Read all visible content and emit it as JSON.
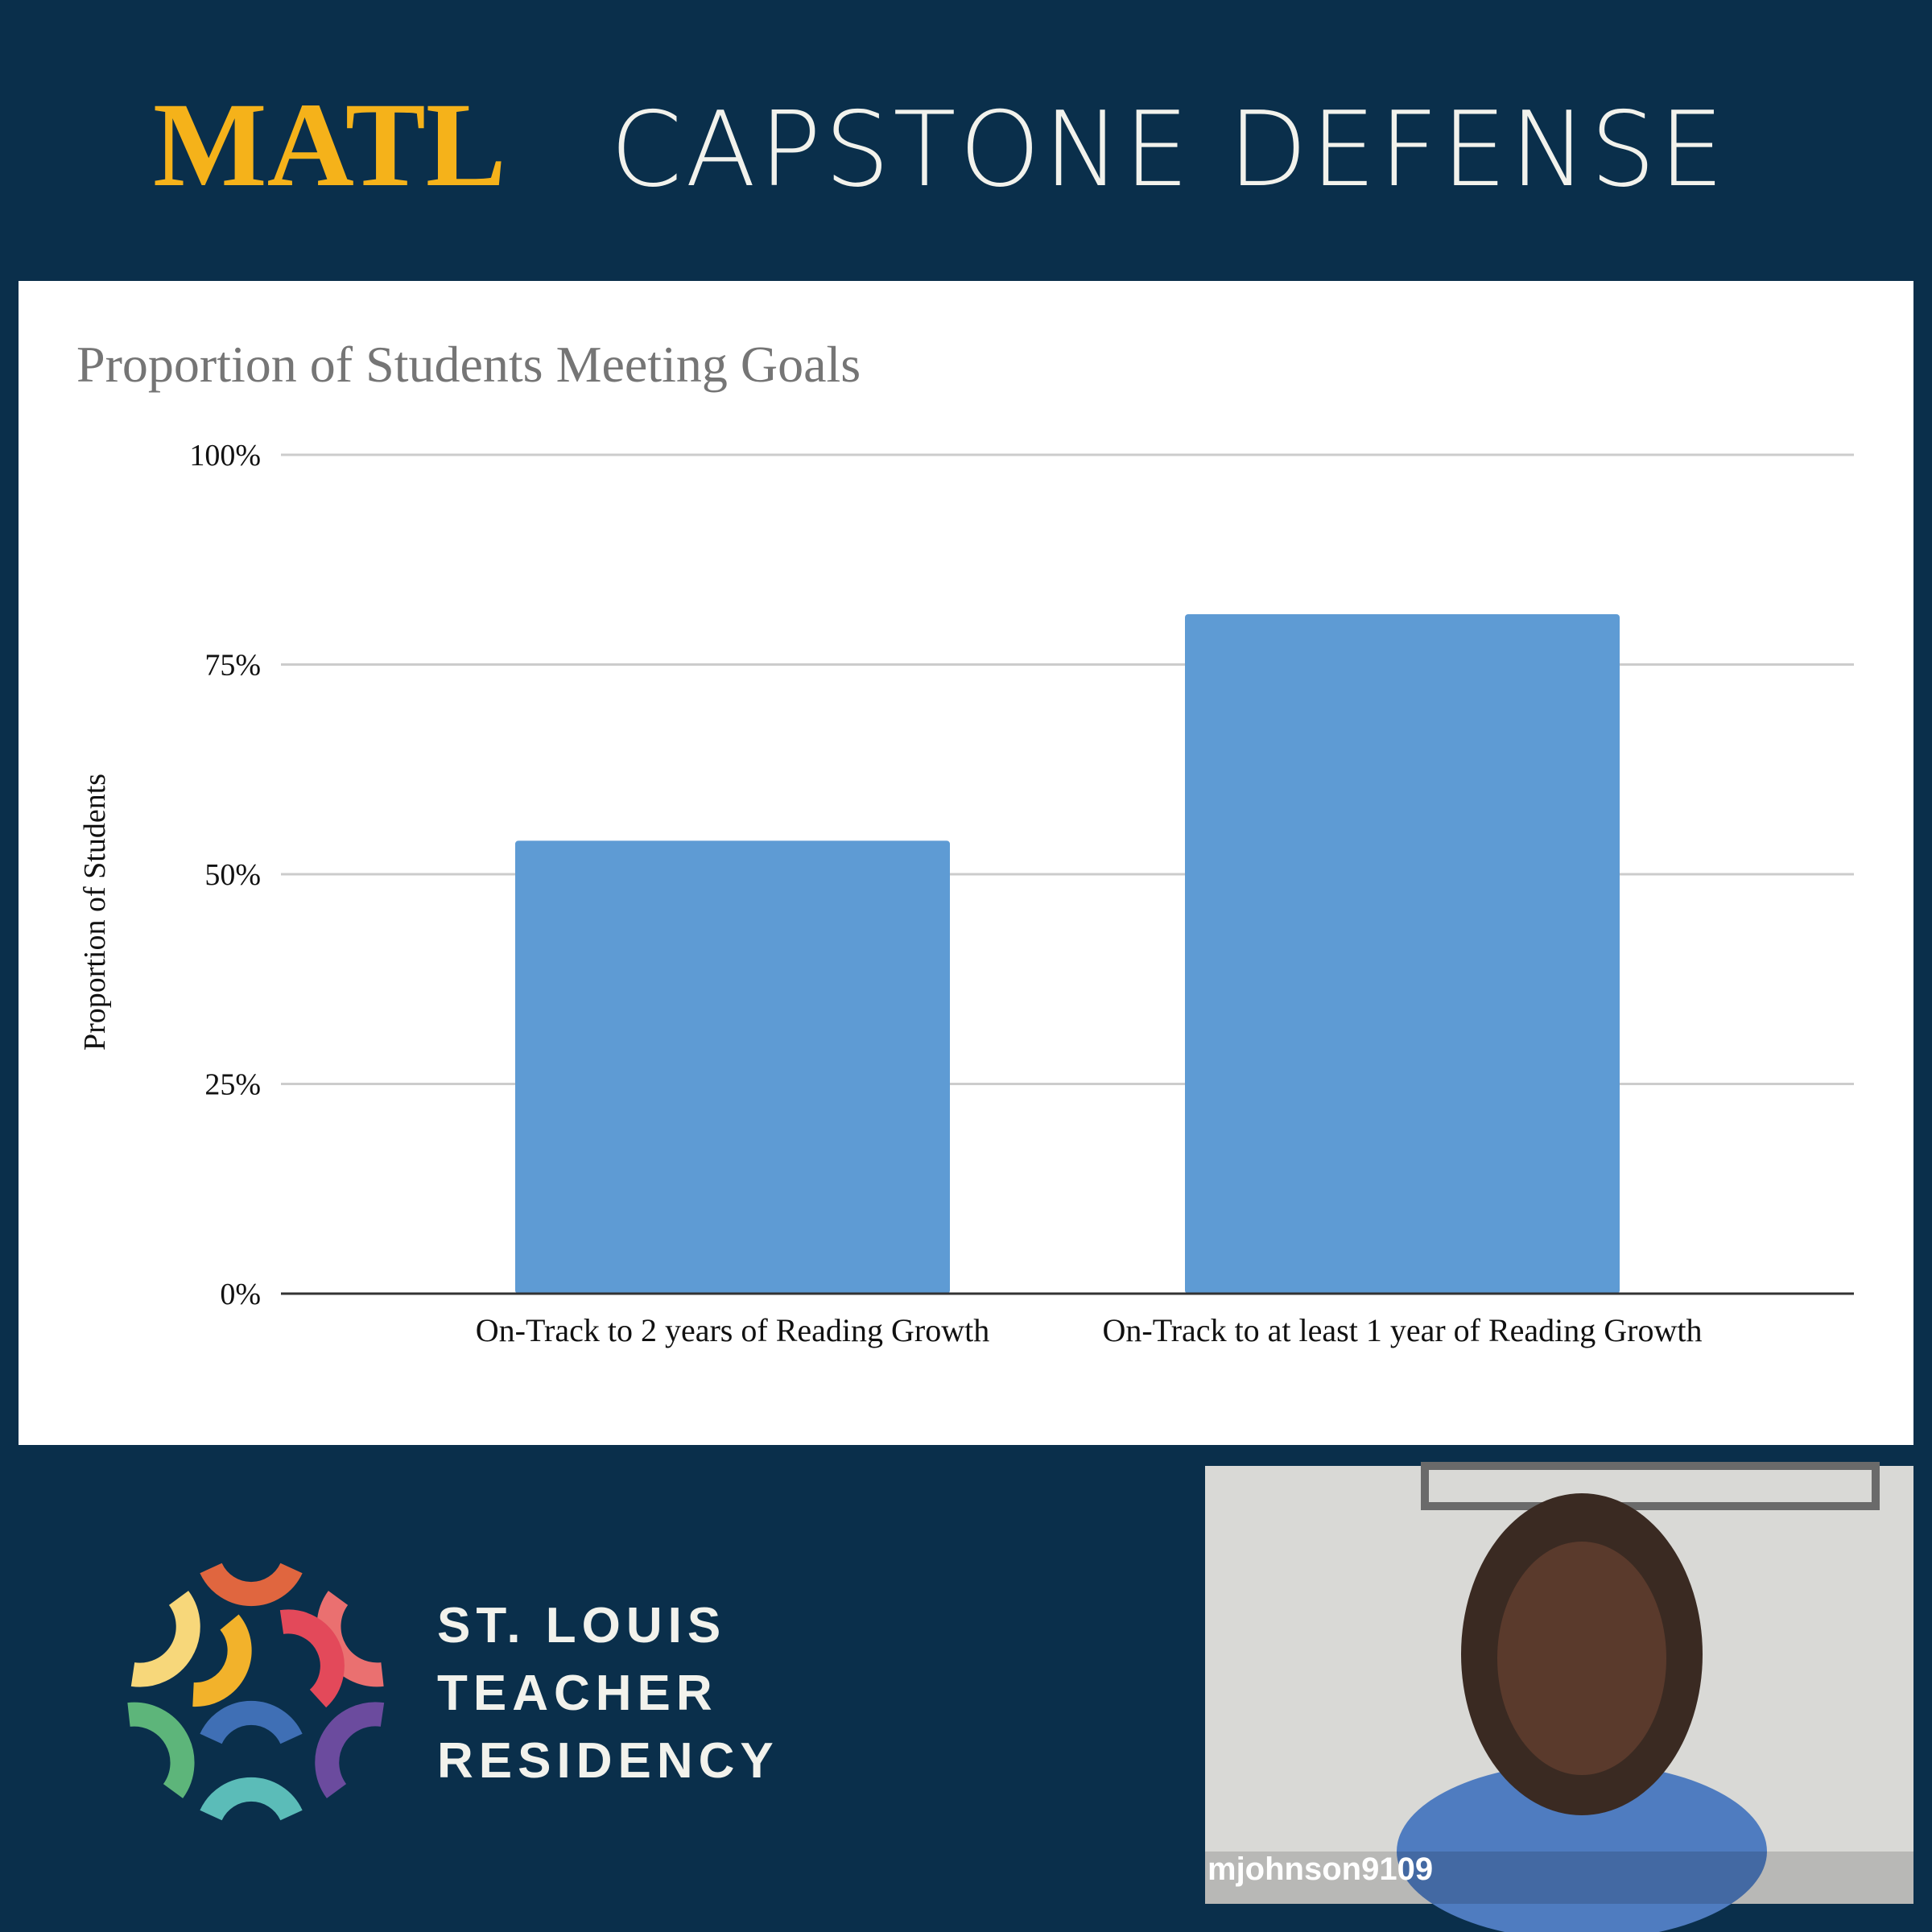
{
  "header": {
    "accent": "MATL",
    "title": "CAPSTONE DEFENSE"
  },
  "chart_data": {
    "type": "bar",
    "title": "Proportion of Students Meeting Goals",
    "y_label": "Proportion of Students",
    "categories": [
      "On-Track to 2 years of Reading Growth",
      "On-Track to at least 1 year of Reading Growth"
    ],
    "values": [
      54,
      81
    ],
    "color": "#5e9bd4",
    "ylim": [
      0,
      100
    ],
    "yticks": [
      {
        "value": 0,
        "label": "0%"
      },
      {
        "value": 25,
        "label": "25%"
      },
      {
        "value": 50,
        "label": "50%"
      },
      {
        "value": 75,
        "label": "75%"
      },
      {
        "value": 100,
        "label": "100%"
      }
    ],
    "grid": true
  },
  "logo": {
    "lines": [
      "ST. LOUIS",
      "TEACHER",
      "RESIDENCY"
    ]
  },
  "video": {
    "username": "mjohnson9109"
  }
}
